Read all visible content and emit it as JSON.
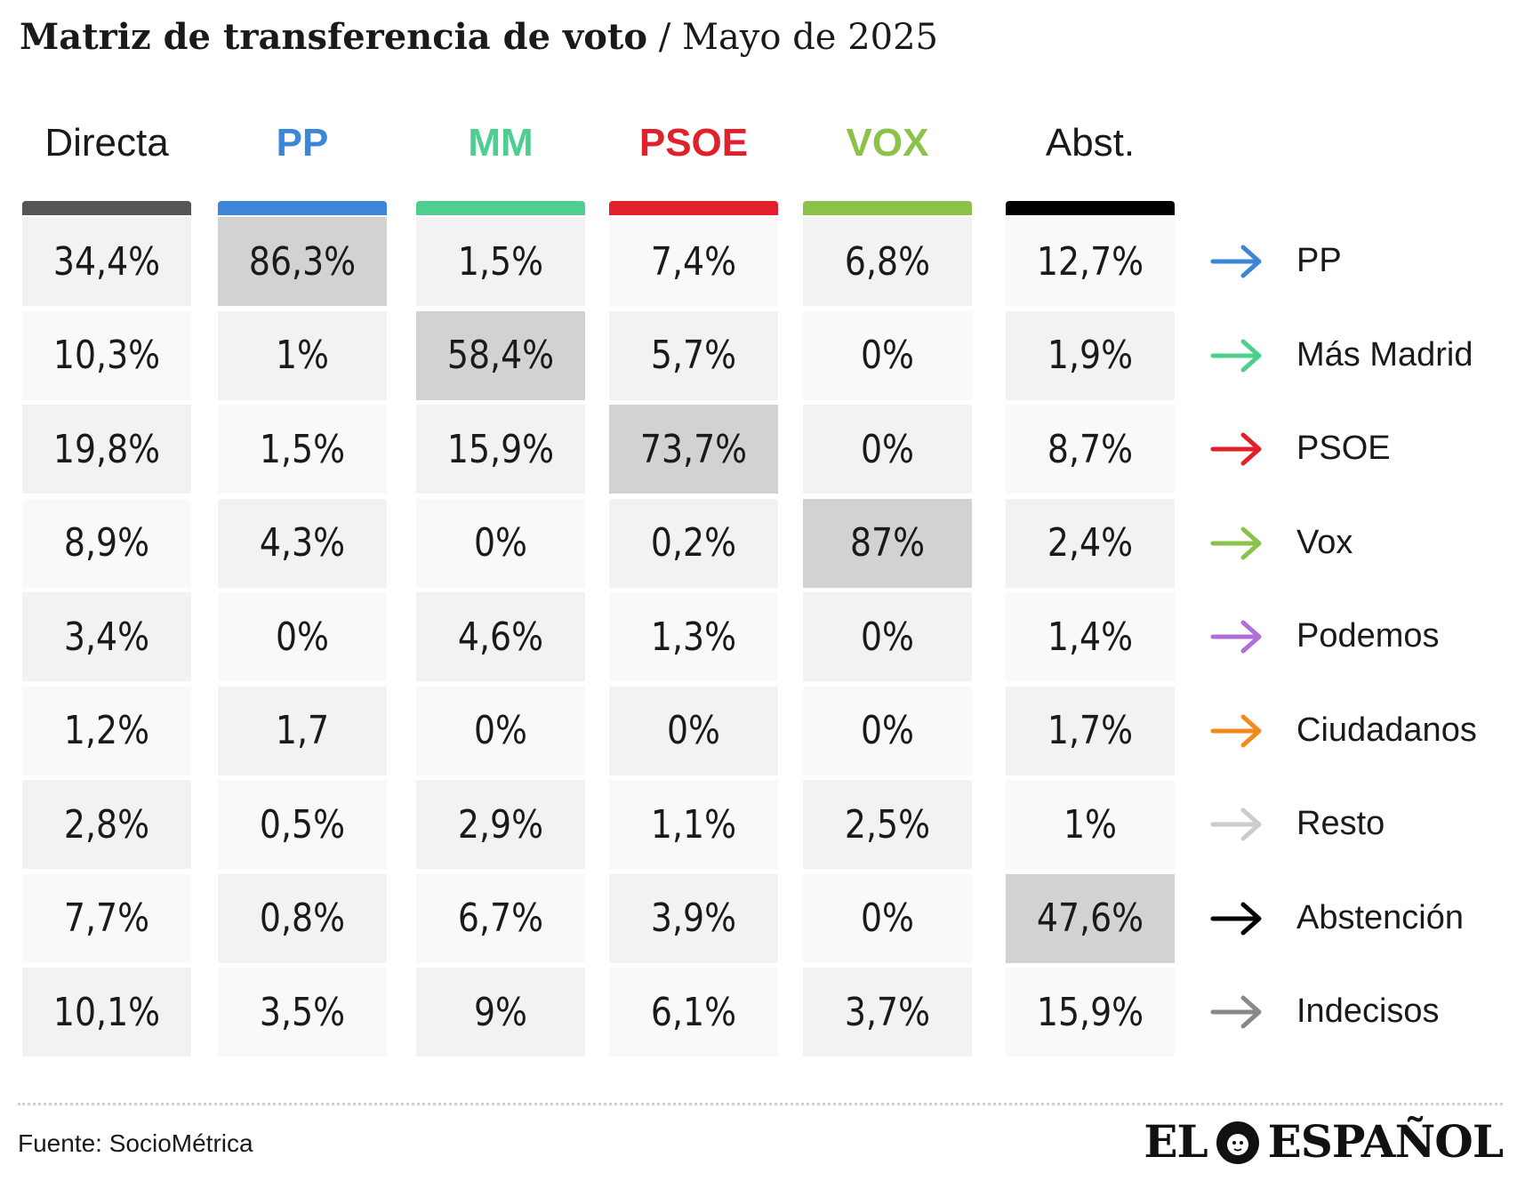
{
  "title": {
    "main": "Matriz de transferencia de voto",
    "separator": "/",
    "subtitle": "Mayo de 2025"
  },
  "chart_data": {
    "type": "table",
    "columns": [
      {
        "label": "Directa",
        "color": "#555555",
        "text_color": "#1a1a1a"
      },
      {
        "label": "PP",
        "color": "#3d85d6",
        "text_color": "#3d85d6"
      },
      {
        "label": "MM",
        "color": "#4fcf8f",
        "text_color": "#4fcf8f"
      },
      {
        "label": "PSOE",
        "color": "#e0202a",
        "text_color": "#e0202a"
      },
      {
        "label": "VOX",
        "color": "#8bc34a",
        "text_color": "#8bc34a"
      },
      {
        "label": "Abst.",
        "color": "#000000",
        "text_color": "#1a1a1a"
      }
    ],
    "rows": [
      {
        "label": "PP",
        "arrow_color": "#3d85d6",
        "values": [
          "34,4%",
          "86,3%",
          "1,5%",
          "7,4%",
          "6,8%",
          "12,7%"
        ]
      },
      {
        "label": "Más Madrid",
        "arrow_color": "#4fcf8f",
        "values": [
          "10,3%",
          "1%",
          "58,4%",
          "5,7%",
          "0%",
          "1,9%"
        ]
      },
      {
        "label": "PSOE",
        "arrow_color": "#e0202a",
        "values": [
          "19,8%",
          "1,5%",
          "15,9%",
          "73,7%",
          "0%",
          "8,7%"
        ]
      },
      {
        "label": "Vox",
        "arrow_color": "#8bc34a",
        "values": [
          "8,9%",
          "4,3%",
          "0%",
          "0,2%",
          "87%",
          "2,4%"
        ]
      },
      {
        "label": "Podemos",
        "arrow_color": "#b06fd8",
        "values": [
          "3,4%",
          "0%",
          "4,6%",
          "1,3%",
          "0%",
          "1,4%"
        ]
      },
      {
        "label": "Ciudadanos",
        "arrow_color": "#f28a1c",
        "values": [
          "1,2%",
          "1,7",
          "0%",
          "0%",
          "0%",
          "1,7%"
        ]
      },
      {
        "label": "Resto",
        "arrow_color": "#cccccc",
        "values": [
          "2,8%",
          "0,5%",
          "2,9%",
          "1,1%",
          "2,5%",
          "1%"
        ]
      },
      {
        "label": "Abstención",
        "arrow_color": "#000000",
        "values": [
          "7,7%",
          "0,8%",
          "6,7%",
          "3,9%",
          "0%",
          "47,6%"
        ]
      },
      {
        "label": "Indecisos",
        "arrow_color": "#888888",
        "values": [
          "10,1%",
          "3,5%",
          "9%",
          "6,1%",
          "3,7%",
          "15,9%"
        ]
      }
    ],
    "highlighted_cells": [
      [
        0,
        1
      ],
      [
        1,
        2
      ],
      [
        2,
        3
      ],
      [
        3,
        4
      ],
      [
        7,
        5
      ]
    ]
  },
  "footer": {
    "source": "Fuente: SocioMétrica",
    "logo_left": "EL",
    "logo_right": "ESPAÑOL"
  }
}
